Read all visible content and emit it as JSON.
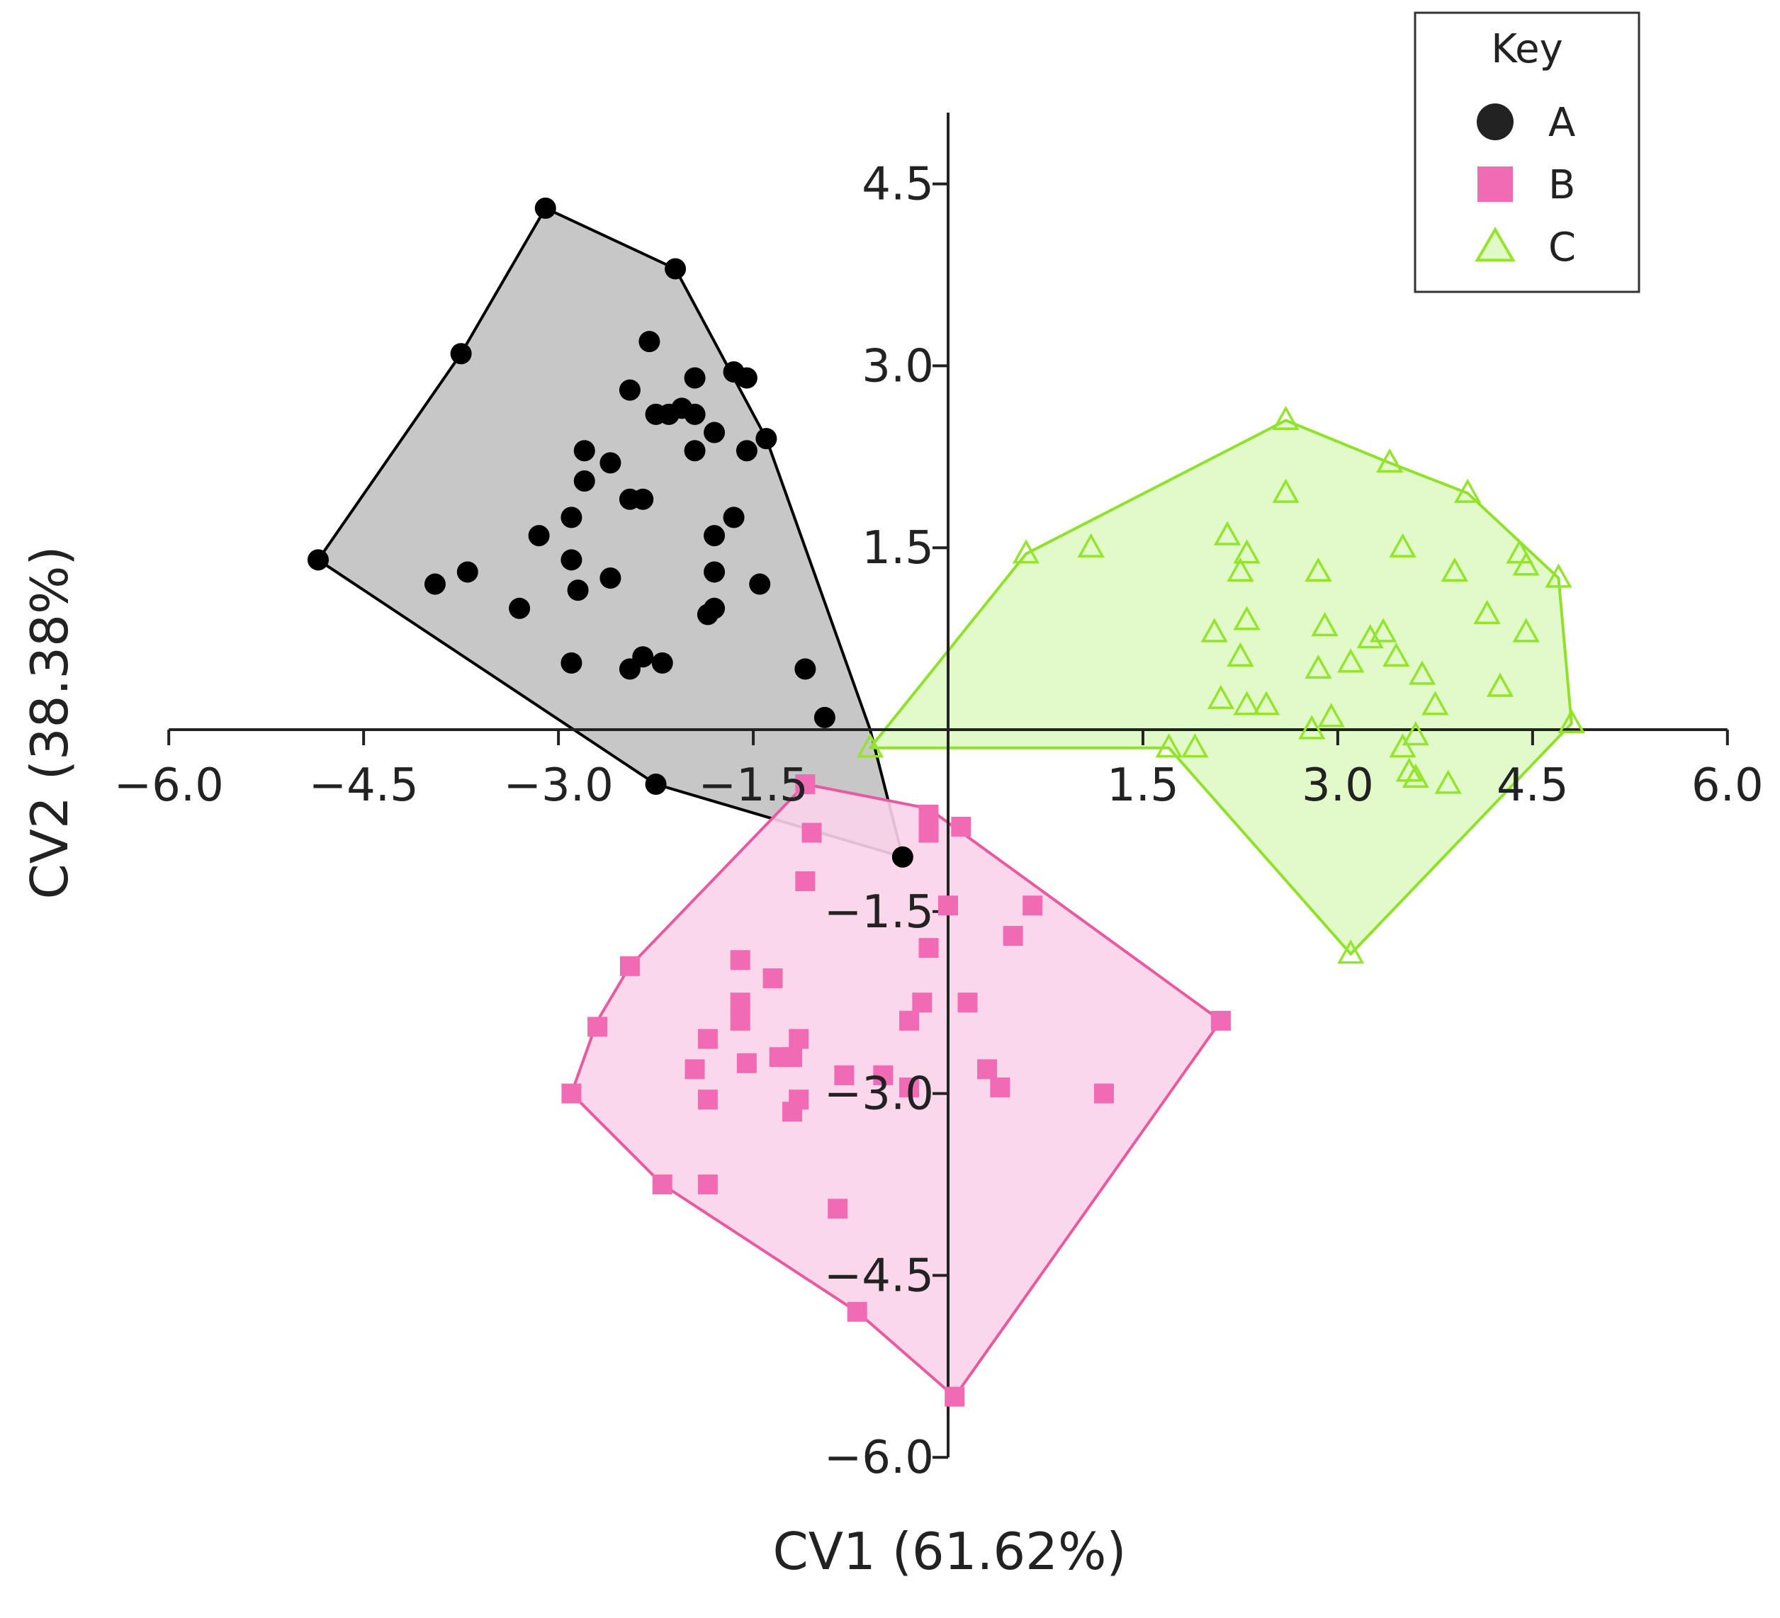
{
  "chart_data": {
    "type": "scatter",
    "title": "",
    "xlabel": "CV1 (61.62%)",
    "ylabel": "CV2 (38.38%)",
    "xlim": [
      -6.0,
      6.0
    ],
    "ylim": [
      -6.0,
      5.0
    ],
    "x_ticks": [
      -6.0,
      -4.5,
      -3.0,
      -1.5,
      1.5,
      3.0,
      4.5,
      6.0
    ],
    "x_tick_labels": [
      "−6.0",
      "−4.5",
      "−3.0",
      "−1.5",
      "1.5",
      "3.0",
      "4.5",
      "6.0"
    ],
    "y_ticks": [
      -6.0,
      -4.5,
      -3.0,
      -1.5,
      1.5,
      3.0,
      4.5
    ],
    "y_tick_labels": [
      "−6.0",
      "−4.5",
      "−3.0",
      "−1.5",
      "1.5",
      "3.0",
      "4.5"
    ],
    "grid": false,
    "legend": {
      "title": "Key",
      "placement": "top-right",
      "entries": [
        {
          "label": "A",
          "marker": "circle"
        },
        {
          "label": "B",
          "marker": "square"
        },
        {
          "label": "C",
          "marker": "triangle"
        }
      ]
    },
    "series": [
      {
        "name": "A",
        "marker": "circle",
        "color": "#000000",
        "hull_fill": "#bdbdbd",
        "hull_stroke": "#000000",
        "hull": [
          [
            -3.1,
            4.3
          ],
          [
            -2.1,
            3.8
          ],
          [
            -1.4,
            2.4
          ],
          [
            -0.6,
            0.0
          ],
          [
            -0.35,
            -1.05
          ],
          [
            -2.25,
            -0.45
          ],
          [
            -4.85,
            1.4
          ],
          [
            -3.75,
            3.1
          ]
        ],
        "points": [
          [
            -3.1,
            4.3
          ],
          [
            -2.1,
            3.8
          ],
          [
            -3.75,
            3.1
          ],
          [
            -2.3,
            3.2
          ],
          [
            -1.95,
            2.9
          ],
          [
            -1.65,
            2.95
          ],
          [
            -1.55,
            2.9
          ],
          [
            -2.45,
            2.8
          ],
          [
            -2.25,
            2.6
          ],
          [
            -2.15,
            2.6
          ],
          [
            -2.05,
            2.65
          ],
          [
            -1.95,
            2.6
          ],
          [
            -1.8,
            2.45
          ],
          [
            -1.4,
            2.4
          ],
          [
            -2.8,
            2.3
          ],
          [
            -2.6,
            2.2
          ],
          [
            -1.95,
            2.3
          ],
          [
            -1.55,
            2.3
          ],
          [
            -2.8,
            2.05
          ],
          [
            -2.45,
            1.9
          ],
          [
            -2.35,
            1.9
          ],
          [
            -2.9,
            1.75
          ],
          [
            -1.65,
            1.75
          ],
          [
            -3.15,
            1.6
          ],
          [
            -1.8,
            1.6
          ],
          [
            -4.85,
            1.4
          ],
          [
            -2.9,
            1.4
          ],
          [
            -3.7,
            1.3
          ],
          [
            -1.8,
            1.3
          ],
          [
            -2.6,
            1.25
          ],
          [
            -3.95,
            1.2
          ],
          [
            -1.45,
            1.2
          ],
          [
            -2.85,
            1.15
          ],
          [
            -3.3,
            1.0
          ],
          [
            -1.85,
            0.95
          ],
          [
            -1.8,
            1.0
          ],
          [
            -2.9,
            0.55
          ],
          [
            -2.45,
            0.5
          ],
          [
            -2.35,
            0.6
          ],
          [
            -2.2,
            0.55
          ],
          [
            -1.1,
            0.5
          ],
          [
            -0.95,
            0.1
          ],
          [
            -2.25,
            -0.45
          ],
          [
            -0.35,
            -1.05
          ]
        ]
      },
      {
        "name": "B",
        "marker": "square",
        "color": "#f06bb4",
        "hull_fill": "#fbd3e9",
        "hull_stroke": "#e8599f",
        "hull": [
          [
            -1.1,
            -0.45
          ],
          [
            -0.15,
            -0.65
          ],
          [
            2.1,
            -2.4
          ],
          [
            0.05,
            -5.5
          ],
          [
            -0.7,
            -4.8
          ],
          [
            -2.2,
            -3.75
          ],
          [
            -2.9,
            -3.0
          ],
          [
            -2.7,
            -2.4
          ],
          [
            -2.45,
            -1.95
          ]
        ],
        "points": [
          [
            -1.1,
            -0.45
          ],
          [
            -1.05,
            -0.85
          ],
          [
            -1.1,
            -1.25
          ],
          [
            -0.15,
            -0.7
          ],
          [
            -0.15,
            -0.85
          ],
          [
            0.1,
            -0.8
          ],
          [
            0.0,
            -1.45
          ],
          [
            0.65,
            -1.45
          ],
          [
            0.5,
            -1.7
          ],
          [
            -0.15,
            -1.8
          ],
          [
            -1.6,
            -1.9
          ],
          [
            -1.35,
            -2.05
          ],
          [
            -2.45,
            -1.95
          ],
          [
            -1.6,
            -2.25
          ],
          [
            -1.6,
            -2.4
          ],
          [
            -0.2,
            -2.25
          ],
          [
            -0.3,
            -2.4
          ],
          [
            0.15,
            -2.25
          ],
          [
            -2.7,
            -2.45
          ],
          [
            -1.85,
            -2.55
          ],
          [
            -1.15,
            -2.55
          ],
          [
            -1.2,
            -2.7
          ],
          [
            -1.3,
            -2.7
          ],
          [
            -1.55,
            -2.75
          ],
          [
            -1.95,
            -2.8
          ],
          [
            -0.8,
            -2.85
          ],
          [
            -0.5,
            -2.85
          ],
          [
            0.3,
            -2.8
          ],
          [
            -0.3,
            -2.95
          ],
          [
            0.4,
            -2.95
          ],
          [
            -1.15,
            -3.05
          ],
          [
            -1.2,
            -3.15
          ],
          [
            -2.9,
            -3.0
          ],
          [
            -1.85,
            -3.05
          ],
          [
            1.2,
            -3.0
          ],
          [
            2.1,
            -2.4
          ],
          [
            -2.2,
            -3.75
          ],
          [
            -1.85,
            -3.75
          ],
          [
            -0.85,
            -3.95
          ],
          [
            -0.7,
            -4.8
          ],
          [
            0.05,
            -5.5
          ]
        ]
      },
      {
        "name": "C",
        "marker": "triangle",
        "color": "#92e52a",
        "hull_fill": "#dffac4",
        "hull_stroke": "#8fe12a",
        "hull": [
          [
            -0.6,
            -0.15
          ],
          [
            0.6,
            1.45
          ],
          [
            2.6,
            2.55
          ],
          [
            3.4,
            2.2
          ],
          [
            4.0,
            1.95
          ],
          [
            4.7,
            1.25
          ],
          [
            4.8,
            0.05
          ],
          [
            3.1,
            -1.85
          ],
          [
            1.7,
            -0.15
          ]
        ],
        "points": [
          [
            2.6,
            2.55
          ],
          [
            3.4,
            2.2
          ],
          [
            4.0,
            1.95
          ],
          [
            2.6,
            1.95
          ],
          [
            0.6,
            1.45
          ],
          [
            1.1,
            1.5
          ],
          [
            2.15,
            1.6
          ],
          [
            2.3,
            1.45
          ],
          [
            2.25,
            1.3
          ],
          [
            2.85,
            1.3
          ],
          [
            3.5,
            1.5
          ],
          [
            3.9,
            1.3
          ],
          [
            4.4,
            1.45
          ],
          [
            4.45,
            1.35
          ],
          [
            4.7,
            1.25
          ],
          [
            2.3,
            0.9
          ],
          [
            4.15,
            0.95
          ],
          [
            2.05,
            0.8
          ],
          [
            2.9,
            0.85
          ],
          [
            3.25,
            0.75
          ],
          [
            3.35,
            0.8
          ],
          [
            4.45,
            0.8
          ],
          [
            2.25,
            0.6
          ],
          [
            3.1,
            0.55
          ],
          [
            3.45,
            0.6
          ],
          [
            2.85,
            0.5
          ],
          [
            3.65,
            0.45
          ],
          [
            4.25,
            0.35
          ],
          [
            2.1,
            0.25
          ],
          [
            2.3,
            0.2
          ],
          [
            2.45,
            0.2
          ],
          [
            3.75,
            0.2
          ],
          [
            2.8,
            0.0
          ],
          [
            2.95,
            0.1
          ],
          [
            4.8,
            0.05
          ],
          [
            3.6,
            -0.05
          ],
          [
            1.7,
            -0.15
          ],
          [
            1.9,
            -0.15
          ],
          [
            3.5,
            -0.15
          ],
          [
            3.55,
            -0.35
          ],
          [
            3.6,
            -0.4
          ],
          [
            3.85,
            -0.45
          ],
          [
            -0.6,
            -0.15
          ],
          [
            3.1,
            -1.85
          ]
        ]
      }
    ]
  }
}
